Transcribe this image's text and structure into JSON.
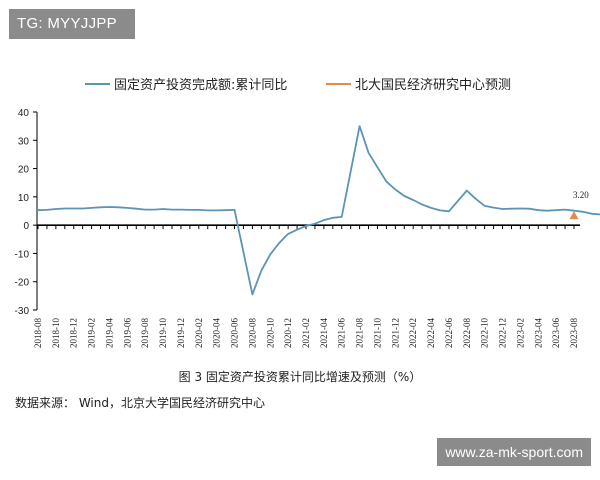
{
  "badge": "TG: MYYJJPP",
  "watermark": "www.za-mk-sport.com",
  "caption": "图 3  固定资产投资累计同比增速及预测（%）",
  "source": "数据来源：  Wind，北京大学国民经济研究中心",
  "chart_data": {
    "type": "line",
    "title": "",
    "xlabel": "",
    "ylabel": "",
    "ylim": [
      -30,
      40
    ],
    "yticks": [
      40,
      30,
      20,
      10,
      0,
      -10,
      -20,
      -30
    ],
    "tick_labels": [
      "2018-08",
      "2018-10",
      "2018-12",
      "2019-02",
      "2019-04",
      "2019-06",
      "2019-08",
      "2019-10",
      "2019-12",
      "2020-02",
      "2020-04",
      "2020-06",
      "2020-08",
      "2020-10",
      "2020-12",
      "2021-02",
      "2021-04",
      "2021-06",
      "2021-08",
      "2021-10",
      "2021-12",
      "2022-02",
      "2022-04",
      "2022-06",
      "2022-08",
      "2022-10",
      "2022-12",
      "2023-02",
      "2023-04",
      "2023-06",
      "2023-08"
    ],
    "legend_position": "top",
    "series": [
      {
        "name": "固定资产投资完成额:累计同比",
        "color": "#5b94b5",
        "values": [
          5.3,
          5.4,
          5.7,
          5.9,
          5.9,
          5.9,
          6.1,
          6.3,
          6.4,
          6.3,
          6.1,
          5.8,
          5.5,
          5.5,
          5.7,
          5.5,
          5.5,
          5.4,
          5.4,
          5.2,
          5.2,
          5.3,
          5.4,
          null,
          -24.5,
          -16.1,
          -10.3,
          -6.3,
          -3.1,
          -1.6,
          -0.3,
          0.5,
          1.8,
          2.6,
          2.9,
          null,
          35.0,
          25.6,
          20.4,
          15.4,
          12.6,
          10.3,
          8.9,
          7.3,
          6.1,
          5.2,
          4.9,
          null,
          12.2,
          9.3,
          6.8,
          6.2,
          5.7,
          5.8,
          5.9,
          5.8,
          5.3,
          5.1,
          null,
          5.5,
          5.1,
          4.7,
          4.0,
          3.8,
          3.4
        ]
      },
      {
        "name": "北大国民经济研究中心预测",
        "color": "#e58a45",
        "points": [
          {
            "x": "2023-08",
            "y": 3.2
          }
        ],
        "label": "3.20"
      }
    ]
  }
}
